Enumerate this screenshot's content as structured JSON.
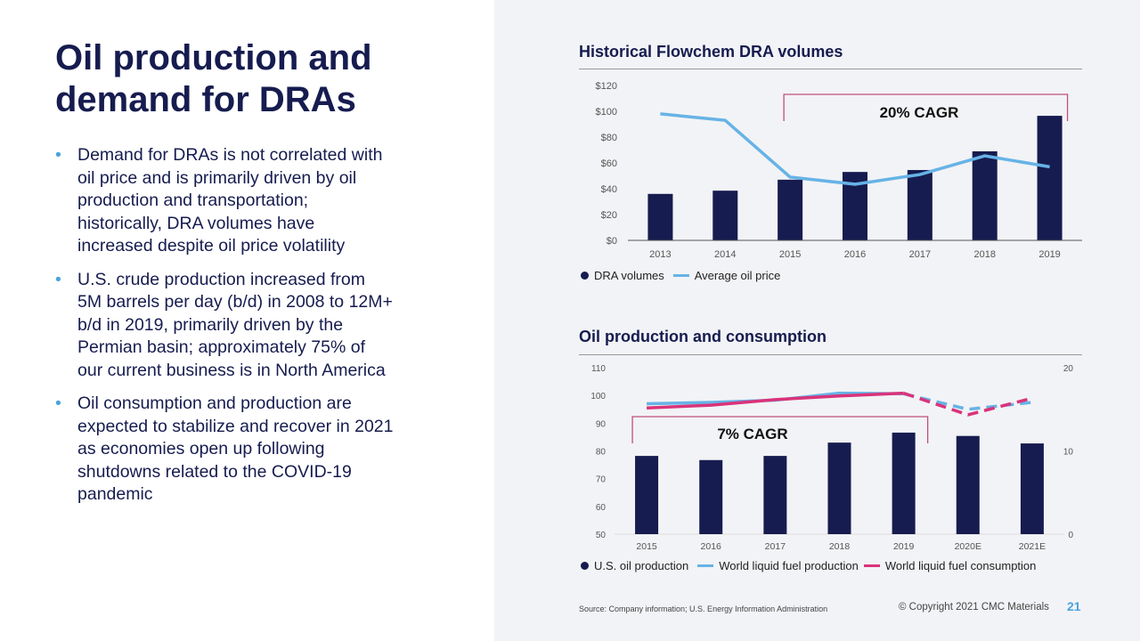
{
  "title": "Oil production and demand for DRAs",
  "bullets": [
    "Demand for DRAs is not correlated with oil price and is primarily driven by oil production and transportation; historically, DRA volumes have increased despite oil price volatility",
    "U.S. crude production increased from 5M barrels per day (b/d) in 2008 to 12M+ b/d in 2019, primarily driven by the Permian basin; approximately 75% of our current business is in North America",
    "Oil consumption and production are expected to stabilize and recover in 2021 as economies open up following shutdowns related to the COVID-19 pandemic"
  ],
  "colors": {
    "navy": "#161c4f",
    "lightblue": "#66b3e6",
    "magenta": "#d9337a",
    "bracket": "#c0507a"
  },
  "chart_data": [
    {
      "type": "bar+line",
      "title": "Historical Flowchem DRA volumes",
      "categories": [
        "2013",
        "2014",
        "2015",
        "2016",
        "2017",
        "2018",
        "2019"
      ],
      "yticks": [
        "$0",
        "$20",
        "$40",
        "$60",
        "$80",
        "$100",
        "$120"
      ],
      "ylim": [
        0,
        120
      ],
      "series": [
        {
          "name": "DRA volumes",
          "kind": "bar",
          "values": [
            36,
            38.5,
            47,
            53,
            54.5,
            69,
            96.5
          ]
        },
        {
          "name": "Average oil price",
          "kind": "line",
          "values": [
            98,
            93,
            49,
            43.5,
            51,
            65.5,
            57
          ]
        }
      ],
      "annotation": "20% CAGR",
      "annotation_range": [
        "2015",
        "2019"
      ],
      "legend": "bottom-left",
      "grid": false
    },
    {
      "type": "bar+line",
      "title": "Oil production and consumption",
      "categories": [
        "2015",
        "2016",
        "2017",
        "2018",
        "2019",
        "2020E",
        "2021E"
      ],
      "yticks_left": [
        "50",
        "60",
        "70",
        "80",
        "90",
        "100",
        "110"
      ],
      "ylim_left": [
        50,
        110
      ],
      "yticks_right": [
        "0",
        "10",
        "20"
      ],
      "ylim_right": [
        0,
        20
      ],
      "series": [
        {
          "name": "U.S. oil production",
          "kind": "bar",
          "axis": "right",
          "values": [
            9.4,
            8.9,
            9.4,
            11.0,
            12.2,
            11.8,
            10.9
          ]
        },
        {
          "name": "World liquid fuel production",
          "kind": "line",
          "axis": "left",
          "values": [
            97,
            97.5,
            98.3,
            100.8,
            100.6,
            95,
            97.5
          ],
          "dashed_from": "2019"
        },
        {
          "name": "World liquid fuel consumption",
          "kind": "line",
          "axis": "left",
          "values": [
            95.5,
            96.5,
            98.5,
            99.8,
            100.8,
            93,
            99
          ],
          "dashed_from": "2019"
        }
      ],
      "annotation": "7% CAGR",
      "annotation_range": [
        "2015",
        "2019"
      ],
      "legend": "bottom-left",
      "grid": false
    }
  ],
  "footer": {
    "source": "Source: Company information; U.S. Energy Information Administration",
    "copyright": "© Copyright 2021 CMC Materials",
    "page": "21"
  }
}
